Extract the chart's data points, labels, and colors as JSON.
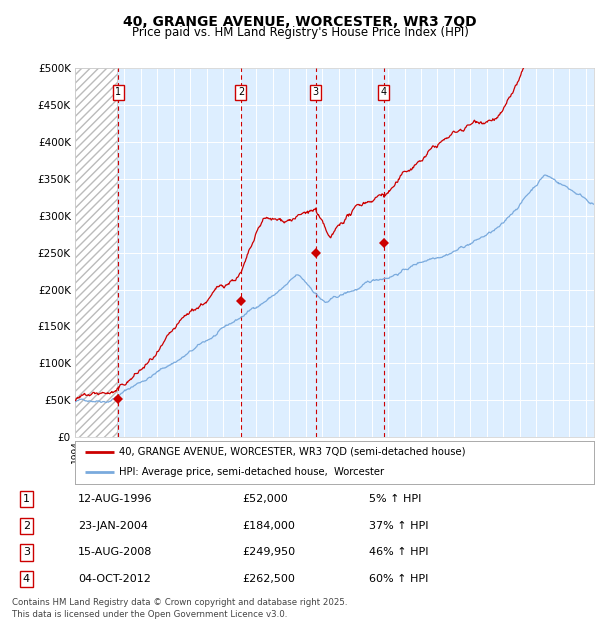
{
  "title": "40, GRANGE AVENUE, WORCESTER, WR3 7QD",
  "subtitle": "Price paid vs. HM Land Registry's House Price Index (HPI)",
  "ylim": [
    0,
    500000
  ],
  "yticks": [
    0,
    50000,
    100000,
    150000,
    200000,
    250000,
    300000,
    350000,
    400000,
    450000,
    500000
  ],
  "ytick_labels": [
    "£0",
    "£50K",
    "£100K",
    "£150K",
    "£200K",
    "£250K",
    "£300K",
    "£350K",
    "£400K",
    "£450K",
    "£500K"
  ],
  "xlim_start": 1994.0,
  "xlim_end": 2025.5,
  "background_color": "#ffffff",
  "plot_bg_color": "#ddeeff",
  "hatch_region_end": 1996.55,
  "transaction_dates": [
    1996.619,
    2004.069,
    2008.619,
    2012.753
  ],
  "transaction_prices": [
    52000,
    184000,
    249950,
    262500
  ],
  "transaction_labels": [
    "1",
    "2",
    "3",
    "4"
  ],
  "legend_line1": "40, GRANGE AVENUE, WORCESTER, WR3 7QD (semi-detached house)",
  "legend_line2": "HPI: Average price, semi-detached house,  Worcester",
  "table_rows": [
    [
      "1",
      "12-AUG-1996",
      "£52,000",
      "5% ↑ HPI"
    ],
    [
      "2",
      "23-JAN-2004",
      "£184,000",
      "37% ↑ HPI"
    ],
    [
      "3",
      "15-AUG-2008",
      "£249,950",
      "46% ↑ HPI"
    ],
    [
      "4",
      "04-OCT-2012",
      "£262,500",
      "60% ↑ HPI"
    ]
  ],
  "footer": "Contains HM Land Registry data © Crown copyright and database right 2025.\nThis data is licensed under the Open Government Licence v3.0.",
  "hpi_color": "#7aaadd",
  "price_color": "#cc0000",
  "dot_color": "#cc0000",
  "vline_color": "#cc0000"
}
